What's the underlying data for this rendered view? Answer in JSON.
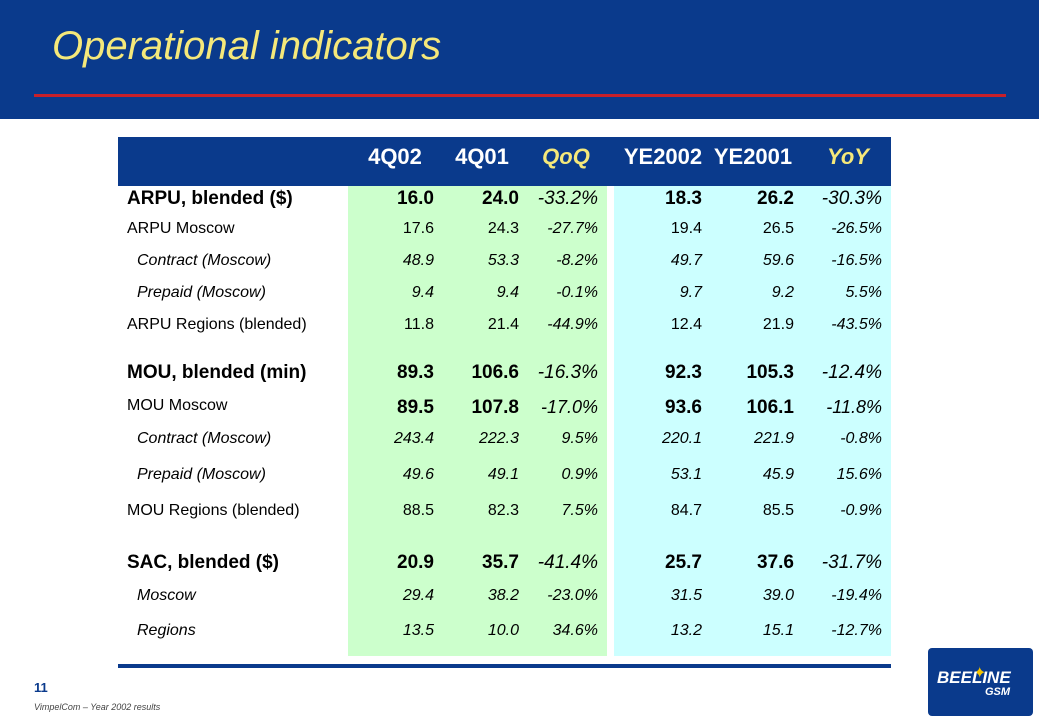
{
  "title": "Operational indicators",
  "columns": [
    "4Q02",
    "4Q01",
    "QoQ",
    "YE2002",
    "YE2001",
    "YoY"
  ],
  "rows": [
    {
      "label": "ARPU, blended ($)",
      "values": [
        "16.0",
        "24.0",
        "-33.2%",
        "18.3",
        "26.2",
        "-30.3%"
      ]
    },
    {
      "label": "ARPU Moscow",
      "values": [
        "17.6",
        "24.3",
        "-27.7%",
        "19.4",
        "26.5",
        "-26.5%"
      ]
    },
    {
      "label": "Contract (Moscow)",
      "values": [
        "48.9",
        "53.3",
        "-8.2%",
        "49.7",
        "59.6",
        "-16.5%"
      ]
    },
    {
      "label": "Prepaid (Moscow)",
      "values": [
        "9.4",
        "9.4",
        "-0.1%",
        "9.7",
        "9.2",
        "5.5%"
      ]
    },
    {
      "label": "ARPU Regions (blended)",
      "values": [
        "11.8",
        "21.4",
        "-44.9%",
        "12.4",
        "21.9",
        "-43.5%"
      ]
    },
    {
      "label": "MOU, blended (min)",
      "values": [
        "89.3",
        "106.6",
        "-16.3%",
        "92.3",
        "105.3",
        "-12.4%"
      ]
    },
    {
      "label": "MOU Moscow",
      "values": [
        "89.5",
        "107.8",
        "-17.0%",
        "93.6",
        "106.1",
        "-11.8%"
      ]
    },
    {
      "label": "Contract (Moscow)",
      "values": [
        "243.4",
        "222.3",
        "9.5%",
        "220.1",
        "221.9",
        "-0.8%"
      ]
    },
    {
      "label": "Prepaid (Moscow)",
      "values": [
        "49.6",
        "49.1",
        "0.9%",
        "53.1",
        "45.9",
        "15.6%"
      ]
    },
    {
      "label": "MOU Regions (blended)",
      "values": [
        "88.5",
        "82.3",
        "7.5%",
        "84.7",
        "85.5",
        "-0.9%"
      ]
    },
    {
      "label": "SAC, blended ($)",
      "values": [
        "20.9",
        "35.7",
        "-41.4%",
        "25.7",
        "37.6",
        "-31.7%"
      ]
    },
    {
      "label": "Moscow",
      "values": [
        "29.4",
        "38.2",
        "-23.0%",
        "31.5",
        "39.0",
        "-19.4%"
      ]
    },
    {
      "label": "Regions",
      "values": [
        "13.5",
        "10.0",
        "34.6%",
        "13.2",
        "15.1",
        "-12.7%"
      ]
    }
  ],
  "page_number": "11",
  "footer": "VimpelCom – Year 2002 results",
  "logo": {
    "word": "BEELINE",
    "sub": "GSM"
  },
  "colors": {
    "header_bg": "#0a3a8c",
    "title": "#f5e87a",
    "accent_rule": "#c8202a",
    "quarter_bg": "#ccffcc",
    "annual_bg": "#ccffff"
  }
}
